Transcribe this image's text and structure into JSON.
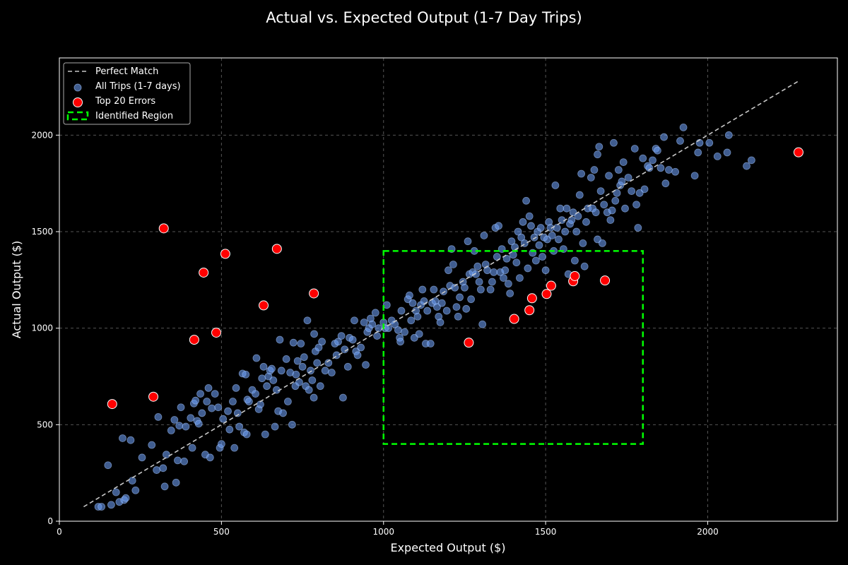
{
  "chart_data": {
    "type": "scatter",
    "title": "Actual vs. Expected Output (1-7 Day Trips)",
    "xlabel": "Expected Output ($)",
    "ylabel": "Actual Output ($)",
    "xlim": [
      0,
      2400
    ],
    "ylim": [
      0,
      2400
    ],
    "xticks": [
      0,
      500,
      1000,
      1500,
      2000
    ],
    "yticks": [
      0,
      500,
      1000,
      1500,
      2000
    ],
    "grid": true,
    "legend_position": "top-left",
    "colors": {
      "background": "#000000",
      "points": "#6b9bf0",
      "errors": "#ff0000",
      "region": "#00ff00",
      "diagonal": "#c8c8c8"
    },
    "legend": [
      {
        "label": "Perfect Match",
        "kind": "dashed-line"
      },
      {
        "label": "All Trips (1-7 days)",
        "kind": "point"
      },
      {
        "label": "Top 20 Errors",
        "kind": "error-point"
      },
      {
        "label": "Identified Region",
        "kind": "dashed-box"
      }
    ],
    "perfect_match_line": {
      "from": [
        75,
        75
      ],
      "to": [
        2280,
        2280
      ]
    },
    "identified_region": {
      "x": [
        1000,
        1800
      ],
      "y": [
        400,
        1400
      ]
    },
    "top_errors": [
      [
        163,
        607
      ],
      [
        290,
        645
      ],
      [
        322,
        1517
      ],
      [
        416,
        940
      ],
      [
        445,
        1288
      ],
      [
        484,
        977
      ],
      [
        512,
        1385
      ],
      [
        630,
        1118
      ],
      [
        671,
        1411
      ],
      [
        785,
        1180
      ],
      [
        1263,
        925
      ],
      [
        1403,
        1048
      ],
      [
        1450,
        1093
      ],
      [
        1458,
        1155
      ],
      [
        1503,
        1177
      ],
      [
        1517,
        1220
      ],
      [
        1585,
        1243
      ],
      [
        1590,
        1270
      ],
      [
        1683,
        1247
      ],
      [
        2280,
        1911
      ]
    ],
    "series": [
      {
        "name": "All Trips (1-7 days)",
        "points": [
          [
            120,
            75
          ],
          [
            130,
            75
          ],
          [
            160,
            85
          ],
          [
            150,
            290
          ],
          [
            175,
            150
          ],
          [
            185,
            100
          ],
          [
            200,
            110
          ],
          [
            205,
            120
          ],
          [
            195,
            430
          ],
          [
            220,
            420
          ],
          [
            225,
            210
          ],
          [
            235,
            160
          ],
          [
            255,
            330
          ],
          [
            285,
            395
          ],
          [
            300,
            265
          ],
          [
            305,
            540
          ],
          [
            320,
            275
          ],
          [
            325,
            180
          ],
          [
            330,
            345
          ],
          [
            345,
            470
          ],
          [
            355,
            525
          ],
          [
            360,
            200
          ],
          [
            365,
            315
          ],
          [
            370,
            495
          ],
          [
            375,
            590
          ],
          [
            385,
            310
          ],
          [
            390,
            490
          ],
          [
            405,
            535
          ],
          [
            410,
            380
          ],
          [
            415,
            610
          ],
          [
            420,
            625
          ],
          [
            425,
            520
          ],
          [
            430,
            505
          ],
          [
            435,
            660
          ],
          [
            440,
            560
          ],
          [
            450,
            345
          ],
          [
            455,
            620
          ],
          [
            460,
            690
          ],
          [
            465,
            330
          ],
          [
            470,
            585
          ],
          [
            480,
            660
          ],
          [
            490,
            590
          ],
          [
            495,
            380
          ],
          [
            500,
            400
          ],
          [
            505,
            530
          ],
          [
            520,
            570
          ],
          [
            525,
            475
          ],
          [
            535,
            620
          ],
          [
            540,
            380
          ],
          [
            545,
            690
          ],
          [
            550,
            560
          ],
          [
            555,
            490
          ],
          [
            565,
            765
          ],
          [
            570,
            460
          ],
          [
            575,
            760
          ],
          [
            578,
            450
          ],
          [
            580,
            630
          ],
          [
            585,
            620
          ],
          [
            595,
            680
          ],
          [
            605,
            660
          ],
          [
            608,
            845
          ],
          [
            615,
            580
          ],
          [
            620,
            605
          ],
          [
            625,
            740
          ],
          [
            630,
            800
          ],
          [
            635,
            450
          ],
          [
            640,
            700
          ],
          [
            645,
            750
          ],
          [
            650,
            780
          ],
          [
            655,
            790
          ],
          [
            660,
            730
          ],
          [
            665,
            490
          ],
          [
            670,
            680
          ],
          [
            675,
            570
          ],
          [
            680,
            940
          ],
          [
            685,
            780
          ],
          [
            690,
            560
          ],
          [
            700,
            840
          ],
          [
            705,
            620
          ],
          [
            712,
            770
          ],
          [
            718,
            500
          ],
          [
            722,
            925
          ],
          [
            728,
            700
          ],
          [
            730,
            760
          ],
          [
            735,
            830
          ],
          [
            740,
            720
          ],
          [
            745,
            920
          ],
          [
            750,
            800
          ],
          [
            755,
            850
          ],
          [
            760,
            700
          ],
          [
            765,
            1040
          ],
          [
            770,
            680
          ],
          [
            775,
            780
          ],
          [
            780,
            730
          ],
          [
            785,
            640
          ],
          [
            786,
            970
          ],
          [
            790,
            880
          ],
          [
            795,
            820
          ],
          [
            800,
            900
          ],
          [
            805,
            700
          ],
          [
            810,
            930
          ],
          [
            820,
            780
          ],
          [
            830,
            820
          ],
          [
            840,
            770
          ],
          [
            850,
            920
          ],
          [
            855,
            860
          ],
          [
            860,
            930
          ],
          [
            870,
            960
          ],
          [
            875,
            640
          ],
          [
            880,
            890
          ],
          [
            890,
            800
          ],
          [
            895,
            950
          ],
          [
            905,
            940
          ],
          [
            910,
            1040
          ],
          [
            915,
            880
          ],
          [
            920,
            860
          ],
          [
            930,
            900
          ],
          [
            940,
            1030
          ],
          [
            945,
            810
          ],
          [
            950,
            980
          ],
          [
            955,
            1000
          ],
          [
            960,
            1050
          ],
          [
            965,
            1020
          ],
          [
            975,
            1080
          ],
          [
            980,
            960
          ],
          [
            985,
            1000
          ],
          [
            1000,
            1030
          ],
          [
            1005,
            1000
          ],
          [
            1010,
            1120
          ],
          [
            1015,
            1000
          ],
          [
            1025,
            1040
          ],
          [
            1035,
            1020
          ],
          [
            1045,
            990
          ],
          [
            1050,
            950
          ],
          [
            1052,
            930
          ],
          [
            1055,
            1090
          ],
          [
            1065,
            980
          ],
          [
            1075,
            1150
          ],
          [
            1080,
            1170
          ],
          [
            1085,
            1040
          ],
          [
            1090,
            1130
          ],
          [
            1095,
            950
          ],
          [
            1100,
            1090
          ],
          [
            1105,
            1060
          ],
          [
            1110,
            970
          ],
          [
            1115,
            1120
          ],
          [
            1120,
            1200
          ],
          [
            1125,
            1140
          ],
          [
            1130,
            920
          ],
          [
            1135,
            1090
          ],
          [
            1145,
            920
          ],
          [
            1150,
            1130
          ],
          [
            1155,
            1200
          ],
          [
            1160,
            1140
          ],
          [
            1165,
            1110
          ],
          [
            1170,
            1060
          ],
          [
            1175,
            1030
          ],
          [
            1180,
            1130
          ],
          [
            1185,
            1190
          ],
          [
            1195,
            1090
          ],
          [
            1200,
            1300
          ],
          [
            1205,
            1220
          ],
          [
            1210,
            1410
          ],
          [
            1215,
            1330
          ],
          [
            1220,
            1210
          ],
          [
            1225,
            1110
          ],
          [
            1230,
            1060
          ],
          [
            1235,
            1160
          ],
          [
            1245,
            1240
          ],
          [
            1250,
            1210
          ],
          [
            1255,
            1100
          ],
          [
            1260,
            1450
          ],
          [
            1265,
            1280
          ],
          [
            1270,
            1150
          ],
          [
            1275,
            1290
          ],
          [
            1280,
            1400
          ],
          [
            1285,
            1280
          ],
          [
            1290,
            1320
          ],
          [
            1295,
            1240
          ],
          [
            1300,
            1200
          ],
          [
            1305,
            1020
          ],
          [
            1310,
            1480
          ],
          [
            1315,
            1330
          ],
          [
            1320,
            1300
          ],
          [
            1330,
            1200
          ],
          [
            1335,
            1240
          ],
          [
            1340,
            1290
          ],
          [
            1345,
            1520
          ],
          [
            1350,
            1370
          ],
          [
            1355,
            1530
          ],
          [
            1360,
            1290
          ],
          [
            1365,
            1410
          ],
          [
            1370,
            1260
          ],
          [
            1375,
            1300
          ],
          [
            1380,
            1360
          ],
          [
            1385,
            1230
          ],
          [
            1390,
            1180
          ],
          [
            1395,
            1450
          ],
          [
            1400,
            1380
          ],
          [
            1405,
            1420
          ],
          [
            1410,
            1340
          ],
          [
            1415,
            1500
          ],
          [
            1420,
            1260
          ],
          [
            1425,
            1470
          ],
          [
            1430,
            1550
          ],
          [
            1435,
            1440
          ],
          [
            1440,
            1660
          ],
          [
            1445,
            1310
          ],
          [
            1450,
            1580
          ],
          [
            1455,
            1530
          ],
          [
            1460,
            1390
          ],
          [
            1465,
            1470
          ],
          [
            1470,
            1350
          ],
          [
            1475,
            1500
          ],
          [
            1480,
            1430
          ],
          [
            1485,
            1520
          ],
          [
            1490,
            1370
          ],
          [
            1495,
            1470
          ],
          [
            1500,
            1300
          ],
          [
            1505,
            1460
          ],
          [
            1510,
            1550
          ],
          [
            1515,
            1520
          ],
          [
            1520,
            1480
          ],
          [
            1525,
            1400
          ],
          [
            1530,
            1740
          ],
          [
            1535,
            1520
          ],
          [
            1540,
            1460
          ],
          [
            1545,
            1620
          ],
          [
            1550,
            1560
          ],
          [
            1555,
            1410
          ],
          [
            1560,
            1500
          ],
          [
            1565,
            1620
          ],
          [
            1570,
            1280
          ],
          [
            1575,
            1540
          ],
          [
            1580,
            1560
          ],
          [
            1585,
            1600
          ],
          [
            1590,
            1350
          ],
          [
            1595,
            1500
          ],
          [
            1600,
            1580
          ],
          [
            1605,
            1690
          ],
          [
            1610,
            1800
          ],
          [
            1615,
            1440
          ],
          [
            1620,
            1320
          ],
          [
            1625,
            1550
          ],
          [
            1630,
            1620
          ],
          [
            1640,
            1780
          ],
          [
            1645,
            1620
          ],
          [
            1650,
            1820
          ],
          [
            1655,
            1600
          ],
          [
            1660,
            1460
          ],
          [
            1665,
            1940
          ],
          [
            1670,
            1710
          ],
          [
            1675,
            1440
          ],
          [
            1680,
            1640
          ],
          [
            1690,
            1600
          ],
          [
            1695,
            1790
          ],
          [
            1700,
            1560
          ],
          [
            1705,
            1610
          ],
          [
            1710,
            1960
          ],
          [
            1715,
            1660
          ],
          [
            1720,
            1700
          ],
          [
            1725,
            1820
          ],
          [
            1730,
            1740
          ],
          [
            1735,
            1760
          ],
          [
            1740,
            1860
          ],
          [
            1745,
            1620
          ],
          [
            1755,
            1780
          ],
          [
            1765,
            1710
          ],
          [
            1775,
            1930
          ],
          [
            1780,
            1640
          ],
          [
            1785,
            1520
          ],
          [
            1790,
            1700
          ],
          [
            1800,
            1880
          ],
          [
            1805,
            1720
          ],
          [
            1815,
            1840
          ],
          [
            1820,
            1830
          ],
          [
            1830,
            1870
          ],
          [
            1840,
            1930
          ],
          [
            1845,
            1920
          ],
          [
            1855,
            1830
          ],
          [
            1870,
            1750
          ],
          [
            1880,
            1820
          ],
          [
            1900,
            1810
          ],
          [
            1915,
            1970
          ],
          [
            1925,
            2040
          ],
          [
            1960,
            1790
          ],
          [
            1970,
            1910
          ],
          [
            1975,
            1960
          ],
          [
            2005,
            1960
          ],
          [
            2030,
            1890
          ],
          [
            2060,
            1910
          ],
          [
            2065,
            2000
          ],
          [
            2120,
            1840
          ],
          [
            2135,
            1870
          ],
          [
            1865,
            1990
          ],
          [
            1660,
            1900
          ]
        ]
      }
    ]
  }
}
